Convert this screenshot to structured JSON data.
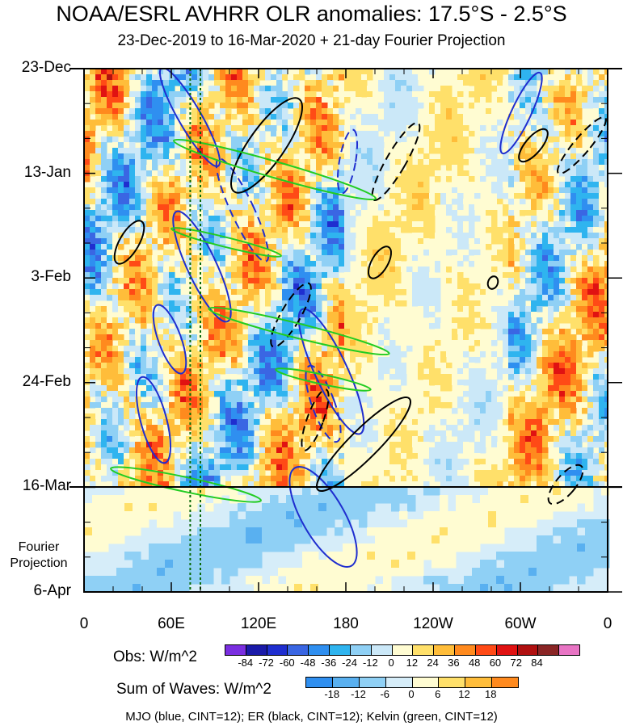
{
  "title": "NOAA/ESRL AVHRR OLR anomalies: 17.5°S - 2.5°S",
  "subtitle": "23-Dec-2019 to 16-Mar-2020 + 21-day Fourier Projection",
  "footer": "MJO (blue, CINT=12); ER (black, CINT=12); Kelvin (green, CINT=12)",
  "chart_data": {
    "type": "heatmap",
    "title": "NOAA/ESRL AVHRR OLR anomalies: 17.5°S - 2.5°S",
    "subtitle": "23-Dec-2019 to 16-Mar-2020 + 21-day Fourier Projection",
    "x_ticks": [
      "0",
      "60E",
      "120E",
      "180",
      "120W",
      "60W",
      "0"
    ],
    "x_range_deg_east": [
      0,
      360
    ],
    "y_ticks": [
      "23-Dec",
      "13-Jan",
      "3-Feb",
      "24-Feb",
      "16-Mar",
      "6-Apr"
    ],
    "projection_label": [
      "Fourier",
      "Projection"
    ],
    "observation_end": "16-Mar",
    "reference_lines_deg_east": [
      73,
      80
    ],
    "obs_colorbar": {
      "label": "Obs: W/m^2",
      "levels": [
        "-84",
        "-72",
        "-60",
        "-48",
        "-36",
        "-24",
        "-12",
        "0",
        "12",
        "24",
        "36",
        "48",
        "60",
        "72",
        "84"
      ],
      "colors": [
        "#7a2ee0",
        "#1a1aa8",
        "#1f2ecf",
        "#3a66e3",
        "#2f8ff0",
        "#2fb4ef",
        "#8fd0f5",
        "#cbe8f8",
        "#fffcd2",
        "#ffe06a",
        "#ffbd3a",
        "#ff8a1e",
        "#ff4a16",
        "#e01212",
        "#b01010",
        "#8a2525",
        "#e874c4"
      ]
    },
    "waves_colorbar": {
      "label": "Sum of Waves: W/m^2",
      "levels": [
        "-18",
        "-12",
        "-6",
        "0",
        "6",
        "12",
        "18"
      ],
      "colors": [
        "#2f8ff0",
        "#59b0f0",
        "#8fd0f5",
        "#d6edf9",
        "#fffcd2",
        "#ffe06a",
        "#ffbd3a",
        "#ff8a1e"
      ]
    },
    "wave_contours": [
      {
        "name": "MJO",
        "color": "#1f2ecf",
        "cint": 12
      },
      {
        "name": "ER",
        "color": "#000000",
        "cint": 12
      },
      {
        "name": "Kelvin",
        "color": "#22cc22",
        "cint": 12
      }
    ],
    "grid": false
  }
}
